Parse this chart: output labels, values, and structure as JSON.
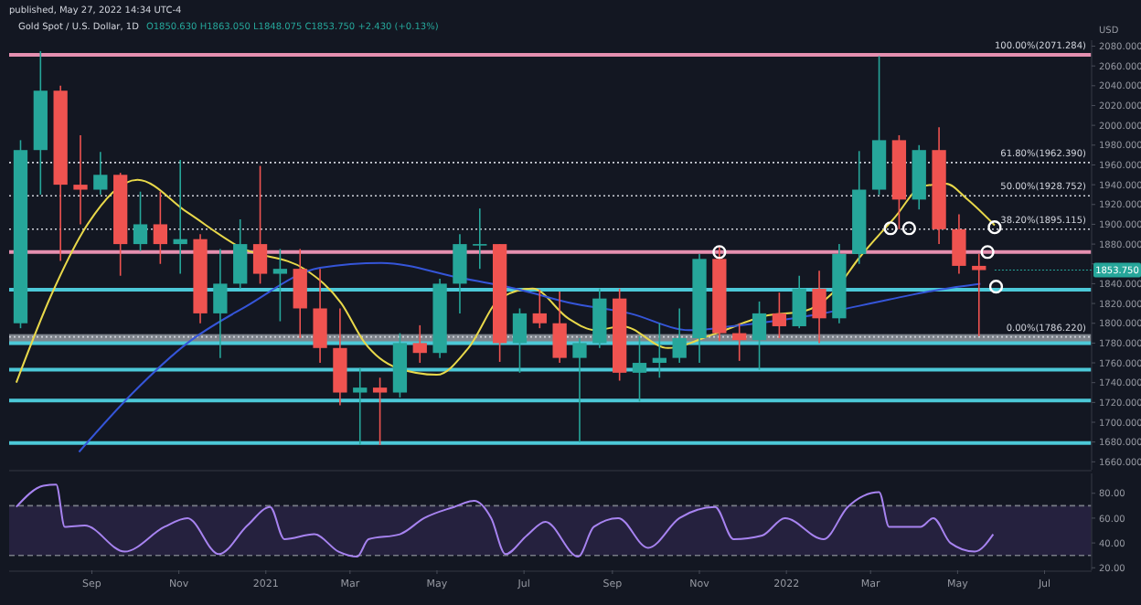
{
  "chart_data": [
    {
      "type": "candlestick",
      "title": "Gold Spot / U.S. Dollar, 1D",
      "subtitle": "O1850.630 H1863.050 L1848.075 C1853.750 +2.430 (+0.13%)",
      "ylabel": "USD",
      "annotations": [
        "published, May 27, 2022 14:34 UTC-4",
        {
          "text": "1853.750",
          "x": "2022-05-27",
          "y": 1853.75
        }
      ],
      "x": [
        "2020-07-13",
        "2020-07-27",
        "2020-08-10",
        "2020-08-24",
        "2020-09-07",
        "2020-09-21",
        "2020-10-05",
        "2020-10-19",
        "2020-11-02",
        "2020-11-16",
        "2020-11-30",
        "2020-12-14",
        "2020-12-28",
        "2021-01-11",
        "2021-01-25",
        "2021-02-08",
        "2021-02-22",
        "2021-03-08",
        "2021-03-22",
        "2021-04-05",
        "2021-04-19",
        "2021-05-03",
        "2021-05-17",
        "2021-05-31",
        "2021-06-14",
        "2021-06-28",
        "2021-07-12",
        "2021-07-26",
        "2021-08-09",
        "2021-08-23",
        "2021-09-06",
        "2021-09-20",
        "2021-10-04",
        "2021-10-18",
        "2021-11-01",
        "2021-11-15",
        "2021-11-29",
        "2021-12-13",
        "2021-12-27",
        "2022-01-10",
        "2022-01-24",
        "2022-02-07",
        "2022-02-21",
        "2022-03-07",
        "2022-03-21",
        "2022-04-04",
        "2022-04-18",
        "2022-05-02",
        "2022-05-16"
      ],
      "ohlc": [
        [
          1800,
          1985,
          1795,
          1975
        ],
        [
          1975,
          2075,
          1930,
          2035
        ],
        [
          2035,
          2040,
          1863,
          1940
        ],
        [
          1940,
          1990,
          1900,
          1935
        ],
        [
          1935,
          1973,
          1930,
          1950
        ],
        [
          1950,
          1952,
          1848,
          1880
        ],
        [
          1880,
          1933,
          1873,
          1900
        ],
        [
          1900,
          1933,
          1860,
          1880
        ],
        [
          1880,
          1965,
          1850,
          1885
        ],
        [
          1885,
          1890,
          1800,
          1810
        ],
        [
          1810,
          1875,
          1765,
          1840
        ],
        [
          1840,
          1905,
          1835,
          1880
        ],
        [
          1880,
          1959,
          1840,
          1850
        ],
        [
          1850,
          1875,
          1802,
          1855
        ],
        [
          1855,
          1875,
          1785,
          1815
        ],
        [
          1815,
          1855,
          1760,
          1775
        ],
        [
          1775,
          1815,
          1717,
          1730
        ],
        [
          1730,
          1755,
          1677,
          1735
        ],
        [
          1735,
          1745,
          1677,
          1730
        ],
        [
          1730,
          1790,
          1725,
          1780
        ],
        [
          1780,
          1798,
          1760,
          1770
        ],
        [
          1770,
          1845,
          1765,
          1840
        ],
        [
          1840,
          1890,
          1810,
          1880
        ],
        [
          1880,
          1916,
          1855,
          1880
        ],
        [
          1880,
          1880,
          1761,
          1780
        ],
        [
          1780,
          1815,
          1750,
          1810
        ],
        [
          1810,
          1834,
          1795,
          1800
        ],
        [
          1800,
          1832,
          1760,
          1765
        ],
        [
          1765,
          1785,
          1680,
          1780
        ],
        [
          1780,
          1835,
          1775,
          1825
        ],
        [
          1825,
          1835,
          1742,
          1750
        ],
        [
          1750,
          1787,
          1721,
          1760
        ],
        [
          1760,
          1800,
          1745,
          1765
        ],
        [
          1765,
          1815,
          1760,
          1785
        ],
        [
          1785,
          1870,
          1760,
          1865
        ],
        [
          1865,
          1877,
          1782,
          1790
        ],
        [
          1790,
          1800,
          1762,
          1783
        ],
        [
          1783,
          1822,
          1753,
          1810
        ],
        [
          1810,
          1831,
          1785,
          1797
        ],
        [
          1797,
          1848,
          1795,
          1835
        ],
        [
          1835,
          1853,
          1780,
          1805
        ],
        [
          1805,
          1880,
          1800,
          1870
        ],
        [
          1870,
          1974,
          1860,
          1935
        ],
        [
          1935,
          2070,
          1930,
          1985
        ],
        [
          1985,
          1990,
          1895,
          1925
        ],
        [
          1925,
          1980,
          1915,
          1975
        ],
        [
          1975,
          1998,
          1880,
          1895
        ],
        [
          1895,
          1910,
          1850,
          1858
        ],
        [
          1858,
          1870,
          1787,
          1853.75
        ]
      ],
      "series": [
        {
          "type": "line",
          "color": "#e8d84a",
          "x": [
            "2020-07-10",
            "2020-08-04",
            "2020-08-29",
            "2020-10-03",
            "2020-11-07",
            "2020-12-15",
            "2021-01-29",
            "2021-02-23",
            "2021-03-11",
            "2021-04-03",
            "2021-05-01",
            "2021-05-23",
            "2021-06-15",
            "2021-07-07",
            "2021-08-01",
            "2021-08-20",
            "2021-09-08",
            "2021-10-10",
            "2021-11-11",
            "2021-12-19",
            "2022-01-13",
            "2022-02-02",
            "2022-02-21",
            "2022-03-18",
            "2022-04-06",
            "2022-04-23",
            "2022-05-08",
            "2022-05-27"
          ],
          "values": [
            1740,
            1830,
            1900,
            1945,
            1912,
            1876,
            1854,
            1820,
            1781,
            1755,
            1748,
            1775,
            1826,
            1835,
            1805,
            1793,
            1797,
            1775,
            1789,
            1808,
            1812,
            1830,
            1866,
            1907,
            1938,
            1941,
            1925,
            1899
          ]
        },
        {
          "type": "line",
          "color": "#3555d8",
          "x": [
            "2020-08-23",
            "2020-09-30",
            "2020-11-07",
            "2020-12-18",
            "2021-02-08",
            "2021-03-23",
            "2021-05-17",
            "2021-06-28",
            "2021-08-01",
            "2021-09-13",
            "2021-10-25",
            "2021-11-24",
            "2022-01-19",
            "2022-03-14",
            "2022-04-18",
            "2022-05-17"
          ],
          "values": [
            1670,
            1730,
            1780,
            1817,
            1856,
            1861,
            1846,
            1834,
            1821,
            1810,
            1793,
            1797,
            1808,
            1824,
            1834,
            1840
          ]
        },
        {
          "type": "scatter",
          "marker": "circle",
          "color": "#ffffff",
          "x": [
            "2021-11-15",
            "2022-03-15",
            "2022-03-28",
            "2022-05-22",
            "2022-05-27",
            "2022-05-28"
          ],
          "values": [
            1872,
            1896,
            1896,
            1872,
            1897,
            1837
          ]
        }
      ],
      "ref_lines": [
        {
          "axis": "y",
          "value": 2071.284,
          "label": "100.00%(2071.284)",
          "color": "#e58fb0"
        },
        {
          "axis": "y",
          "value": 1962.39,
          "label": "61.80%(1962.390)",
          "color": "#cfd2da",
          "line_style": "dotted"
        },
        {
          "axis": "y",
          "value": 1928.752,
          "label": "50.00%(1928.752)",
          "color": "#cfd2da",
          "line_style": "dotted"
        },
        {
          "axis": "y",
          "value": 1895.115,
          "label": "38.20%(1895.115)",
          "color": "#cfd2da",
          "line_style": "dotted"
        },
        {
          "axis": "y",
          "value": 1872,
          "color": "#e58fb0"
        },
        {
          "axis": "y",
          "value": 1834,
          "color": "#4cc9d8"
        },
        {
          "axis": "y",
          "value": 1786.22,
          "label": "0.00%(1786.220)",
          "color": "#cfd2da",
          "line_style": "dotted"
        },
        {
          "axis": "y",
          "value": 1780,
          "color": "#4cc9d8"
        },
        {
          "axis": "y",
          "value": 1753,
          "color": "#4cc9d8"
        },
        {
          "axis": "y",
          "value": 1722,
          "color": "#4cc9d8"
        },
        {
          "axis": "y",
          "value": 1679,
          "color": "#4cc9d8"
        }
      ],
      "bands": [
        {
          "axis": "y",
          "from": 1781,
          "to": 1789,
          "color": "#9aa0a8"
        }
      ],
      "xlim": [
        "2020-07-05",
        "2022-08-03"
      ],
      "ylim": [
        1652,
        2086
      ],
      "yticks": [
        {
          "value": 1660,
          "label": "1660.000"
        },
        {
          "value": 1680,
          "label": "1680.000"
        },
        {
          "value": 1700,
          "label": "1700.000"
        },
        {
          "value": 1720,
          "label": "1720.000"
        },
        {
          "value": 1740,
          "label": "1740.000"
        },
        {
          "value": 1760,
          "label": "1760.000"
        },
        {
          "value": 1780,
          "label": "1780.000"
        },
        {
          "value": 1800,
          "label": "1800.000"
        },
        {
          "value": 1820,
          "label": "1820.000"
        },
        {
          "value": 1840,
          "label": "1840.000"
        },
        {
          "value": 1860,
          "label": null
        },
        {
          "value": 1880,
          "label": "1880.000"
        },
        {
          "value": 1900,
          "label": "1900.000"
        },
        {
          "value": 1920,
          "label": "1920.000"
        },
        {
          "value": 1940,
          "label": "1940.000"
        },
        {
          "value": 1960,
          "label": "1960.000"
        },
        {
          "value": 1980,
          "label": "1980.000"
        },
        {
          "value": 2000,
          "label": "2000.000"
        },
        {
          "value": 2020,
          "label": "2020.000"
        },
        {
          "value": 2040,
          "label": "2040.000"
        },
        {
          "value": 2060,
          "label": "2060.000"
        },
        {
          "value": 2080,
          "label": "2080.000"
        }
      ],
      "tick_labels": "y"
    },
    {
      "type": "line",
      "series": [
        {
          "color": "#a783f0",
          "x": [
            "2020-07-10",
            "2020-07-29",
            "2020-08-07",
            "2020-08-13",
            "2020-08-27",
            "2020-09-24",
            "2020-10-22",
            "2020-11-07",
            "2020-11-29",
            "2020-12-19",
            "2021-01-04",
            "2021-01-14",
            "2021-02-04",
            "2021-02-21",
            "2021-03-06",
            "2021-03-14",
            "2021-04-05",
            "2021-04-22",
            "2021-05-13",
            "2021-05-27",
            "2021-06-08",
            "2021-06-18",
            "2021-07-03",
            "2021-07-16",
            "2021-08-08",
            "2021-08-19",
            "2021-09-05",
            "2021-09-26",
            "2021-10-18",
            "2021-11-12",
            "2021-11-25",
            "2021-12-15",
            "2021-12-31",
            "2022-01-27",
            "2022-02-13",
            "2022-03-07",
            "2022-03-14",
            "2022-04-05",
            "2022-04-14",
            "2022-04-26",
            "2022-05-13",
            "2022-05-26"
          ],
          "values": [
            69,
            86,
            87,
            53,
            54,
            33,
            53,
            60,
            31,
            54,
            69,
            43,
            47,
            33,
            29,
            43,
            47,
            60,
            69,
            74,
            60,
            31,
            46,
            57,
            29,
            53,
            60,
            36,
            60,
            69,
            43,
            46,
            60,
            43,
            69,
            81,
            53,
            53,
            60,
            40,
            33,
            47
          ]
        }
      ],
      "bands": [
        {
          "axis": "y",
          "from": 30,
          "to": 70,
          "color": "#2b2446"
        }
      ],
      "ref_lines": [
        {
          "axis": "y",
          "value": 70,
          "color": "#787b86",
          "line_style": "dashed"
        },
        {
          "axis": "y",
          "value": 30,
          "color": "#787b86",
          "line_style": "dashed"
        }
      ],
      "xlim": [
        "2020-07-05",
        "2022-08-03"
      ],
      "ylim": [
        18,
        96
      ],
      "xticks": [
        {
          "value": "2020-09-01",
          "label": "Sep"
        },
        {
          "value": "2020-11-01",
          "label": "Nov"
        },
        {
          "value": "2021-01-01",
          "label": "2021"
        },
        {
          "value": "2021-03-01",
          "label": "Mar"
        },
        {
          "value": "2021-05-01",
          "label": "May"
        },
        {
          "value": "2021-07-01",
          "label": "Jul"
        },
        {
          "value": "2021-09-01",
          "label": "Sep"
        },
        {
          "value": "2021-11-01",
          "label": "Nov"
        },
        {
          "value": "2022-01-01",
          "label": "2022"
        },
        {
          "value": "2022-03-01",
          "label": "Mar"
        },
        {
          "value": "2022-05-01",
          "label": "May"
        },
        {
          "value": "2022-07-01",
          "label": "Jul"
        }
      ],
      "yticks": [
        {
          "value": 20,
          "label": "20.00"
        },
        {
          "value": 40,
          "label": "40.00"
        },
        {
          "value": 60,
          "label": "60.00"
        },
        {
          "value": 80,
          "label": "80.00"
        }
      ]
    }
  ]
}
